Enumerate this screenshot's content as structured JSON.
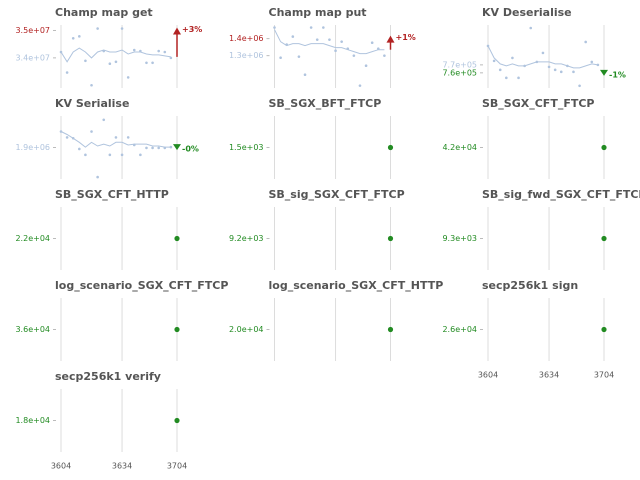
{
  "chart_data": [
    {
      "type": "line",
      "title": "Champ map get",
      "categories": [
        "3604",
        null,
        null,
        null,
        null,
        null,
        null,
        null,
        null,
        null,
        "3634",
        null,
        null,
        null,
        null,
        null,
        null,
        null,
        null,
        "3704"
      ],
      "values": [
        34214000,
        33464000,
        34714000,
        34786000,
        33893000,
        33000000,
        35071000,
        34250000,
        33786000,
        33857000,
        35071000,
        33286000,
        34286000,
        34250000,
        33821000,
        33821000,
        34250000,
        34214000,
        34000000,
        35000000
      ],
      "trend": [
        34214000,
        33857000,
        34214000,
        34357000,
        34214000,
        34000000,
        34214000,
        34286000,
        34214000,
        34214000,
        34286000,
        34143000,
        34214000,
        34214000,
        34143000,
        34107000,
        34107000,
        34071000,
        34036000,
        null
      ],
      "ylim": [
        32900000,
        35200000
      ],
      "yticks": [
        {
          "value": 35000000,
          "label": "3.5e+07"
        },
        {
          "value": 34000000,
          "label": "3.4e+07"
        }
      ],
      "ytick_colors": [
        "#b22222",
        "#b0c4de"
      ],
      "point_color": "#b0c4de",
      "trend_color": "#b0c4de",
      "marker": "arrow-up",
      "annotation": "+3%",
      "annotation_color": "#b22222"
    },
    {
      "type": "line",
      "title": "Champ map put",
      "categories": [
        "3604",
        null,
        null,
        null,
        null,
        null,
        null,
        null,
        null,
        null,
        "3634",
        null,
        null,
        null,
        null,
        null,
        null,
        null,
        null,
        "3704"
      ],
      "values": [
        1465000,
        1288000,
        1365000,
        1412000,
        1294000,
        1188000,
        1465000,
        1394000,
        1465000,
        1394000,
        1329000,
        1382000,
        1341000,
        1300000,
        1124000,
        1241000,
        1376000,
        1341000,
        1300000,
        1400000
      ],
      "trend": [
        1453000,
        1382000,
        1359000,
        1371000,
        1371000,
        1359000,
        1371000,
        1371000,
        1371000,
        1359000,
        1347000,
        1347000,
        1335000,
        1324000,
        1312000,
        1312000,
        1324000,
        1335000,
        1335000,
        null
      ],
      "ylim": [
        1110000,
        1480000
      ],
      "yticks": [
        {
          "value": 1400000,
          "label": "1.4e+06"
        },
        {
          "value": 1300000,
          "label": "1.3e+06"
        }
      ],
      "ytick_colors": [
        "#b22222",
        "#b0c4de"
      ],
      "point_color": "#b0c4de",
      "trend_color": "#b0c4de",
      "marker": "arrow-up",
      "annotation": "+1%",
      "annotation_color": "#b22222"
    },
    {
      "type": "line",
      "title": "KV Deserialise",
      "categories": [
        "3604",
        null,
        null,
        null,
        null,
        null,
        null,
        null,
        null,
        null,
        "3634",
        null,
        null,
        null,
        null,
        null,
        null,
        null,
        null,
        "3704"
      ],
      "values": [
        793750,
        775000,
        763750,
        753750,
        778750,
        753750,
        768750,
        816250,
        773750,
        785000,
        767500,
        763750,
        761250,
        768750,
        761250,
        743750,
        798750,
        773750,
        770000,
        760000
      ],
      "trend": [
        793750,
        778750,
        771250,
        768750,
        771250,
        768750,
        768750,
        771250,
        773750,
        773750,
        773750,
        771250,
        771250,
        768750,
        766250,
        766250,
        768750,
        771250,
        770000,
        null
      ],
      "ylim": [
        741000,
        820000
      ],
      "yticks": [
        {
          "value": 770000,
          "label": "7.7e+05"
        },
        {
          "value": 760000,
          "label": "7.6e+05"
        }
      ],
      "ytick_colors": [
        "#b0c4de",
        "#228b22"
      ],
      "point_color": "#b0c4de",
      "trend_color": "#b0c4de",
      "marker": "triangle-down",
      "annotation": "-1%",
      "annotation_color": "#228b22"
    },
    {
      "type": "line",
      "title": "KV Serialise",
      "categories": [
        "3604",
        null,
        null,
        null,
        null,
        null,
        null,
        null,
        null,
        null,
        "3634",
        null,
        null,
        null,
        null,
        null,
        null,
        null,
        null,
        "3704"
      ],
      "values": [
        1976000,
        1948000,
        1944000,
        1893000,
        1865000,
        1976000,
        1759000,
        2032000,
        1865000,
        1948000,
        1865000,
        1948000,
        1912000,
        1865000,
        1898000,
        1898000,
        1898000,
        1898000,
        1902000,
        1902000
      ],
      "trend": [
        1976000,
        1962000,
        1944000,
        1925000,
        1902000,
        1925000,
        1907000,
        1916000,
        1907000,
        1925000,
        1925000,
        1912000,
        1916000,
        1916000,
        1916000,
        1907000,
        1907000,
        1902000,
        1902000,
        null
      ],
      "ylim": [
        1750000,
        2050000
      ],
      "yticks": [
        {
          "value": 1900000,
          "label": "1.9e+06"
        }
      ],
      "ytick_colors": [
        "#b0c4de"
      ],
      "point_color": "#b0c4de",
      "trend_color": "#b0c4de",
      "marker": "triangle-down",
      "annotation": "-0%",
      "annotation_color": "#228b22"
    },
    {
      "type": "point",
      "title": "SB_SGX_BFT_FTCP",
      "categories": [
        "3604",
        null,
        null,
        null,
        null,
        null,
        null,
        null,
        null,
        null,
        "3634",
        null,
        null,
        null,
        null,
        null,
        null,
        null,
        null,
        "3704"
      ],
      "values": [
        null,
        null,
        null,
        null,
        null,
        null,
        null,
        null,
        null,
        null,
        null,
        null,
        null,
        null,
        null,
        null,
        null,
        null,
        null,
        1500
      ],
      "ylim": [
        1350,
        1650
      ],
      "yticks": [
        {
          "value": 1500,
          "label": "1.5e+03"
        }
      ],
      "ytick_colors": [
        "#228b22"
      ],
      "point_color": "#228b22"
    },
    {
      "type": "point",
      "title": "SB_SGX_CFT_FTCP",
      "categories": [
        "3604",
        null,
        null,
        null,
        null,
        null,
        null,
        null,
        null,
        null,
        "3634",
        null,
        null,
        null,
        null,
        null,
        null,
        null,
        null,
        "3704"
      ],
      "values": [
        null,
        null,
        null,
        null,
        null,
        null,
        null,
        null,
        null,
        null,
        null,
        null,
        null,
        null,
        null,
        null,
        null,
        null,
        null,
        42000
      ],
      "ylim": [
        37800,
        46200
      ],
      "yticks": [
        {
          "value": 42000,
          "label": "4.2e+04"
        }
      ],
      "ytick_colors": [
        "#228b22"
      ],
      "point_color": "#228b22"
    },
    {
      "type": "point",
      "title": "SB_SGX_CFT_HTTP",
      "categories": [
        "3604",
        null,
        null,
        null,
        null,
        null,
        null,
        null,
        null,
        null,
        "3634",
        null,
        null,
        null,
        null,
        null,
        null,
        null,
        null,
        "3704"
      ],
      "values": [
        null,
        null,
        null,
        null,
        null,
        null,
        null,
        null,
        null,
        null,
        null,
        null,
        null,
        null,
        null,
        null,
        null,
        null,
        null,
        22000
      ],
      "ylim": [
        19800,
        24200
      ],
      "yticks": [
        {
          "value": 22000,
          "label": "2.2e+04"
        }
      ],
      "ytick_colors": [
        "#228b22"
      ],
      "point_color": "#228b22"
    },
    {
      "type": "point",
      "title": "SB_sig_SGX_CFT_FTCP",
      "categories": [
        "3604",
        null,
        null,
        null,
        null,
        null,
        null,
        null,
        null,
        null,
        "3634",
        null,
        null,
        null,
        null,
        null,
        null,
        null,
        null,
        "3704"
      ],
      "values": [
        null,
        null,
        null,
        null,
        null,
        null,
        null,
        null,
        null,
        null,
        null,
        null,
        null,
        null,
        null,
        null,
        null,
        null,
        null,
        9200
      ],
      "ylim": [
        8280,
        10120
      ],
      "yticks": [
        {
          "value": 9200,
          "label": "9.2e+03"
        }
      ],
      "ytick_colors": [
        "#228b22"
      ],
      "point_color": "#228b22"
    },
    {
      "type": "point",
      "title": "SB_sig_fwd_SGX_CFT_FTCP",
      "categories": [
        "3604",
        null,
        null,
        null,
        null,
        null,
        null,
        null,
        null,
        null,
        "3634",
        null,
        null,
        null,
        null,
        null,
        null,
        null,
        null,
        "3704"
      ],
      "values": [
        null,
        null,
        null,
        null,
        null,
        null,
        null,
        null,
        null,
        null,
        null,
        null,
        null,
        null,
        null,
        null,
        null,
        null,
        null,
        9300
      ],
      "ylim": [
        8370,
        10230
      ],
      "yticks": [
        {
          "value": 9300,
          "label": "9.3e+03"
        }
      ],
      "ytick_colors": [
        "#228b22"
      ],
      "point_color": "#228b22"
    },
    {
      "type": "point",
      "title": "log_scenario_SGX_CFT_FTCP",
      "categories": [
        "3604",
        null,
        null,
        null,
        null,
        null,
        null,
        null,
        null,
        null,
        "3634",
        null,
        null,
        null,
        null,
        null,
        null,
        null,
        null,
        "3704"
      ],
      "values": [
        null,
        null,
        null,
        null,
        null,
        null,
        null,
        null,
        null,
        null,
        null,
        null,
        null,
        null,
        null,
        null,
        null,
        null,
        null,
        36000
      ],
      "ylim": [
        32400,
        39600
      ],
      "yticks": [
        {
          "value": 36000,
          "label": "3.6e+04"
        }
      ],
      "ytick_colors": [
        "#228b22"
      ],
      "point_color": "#228b22"
    },
    {
      "type": "point",
      "title": "log_scenario_SGX_CFT_HTTP",
      "categories": [
        "3604",
        null,
        null,
        null,
        null,
        null,
        null,
        null,
        null,
        null,
        "3634",
        null,
        null,
        null,
        null,
        null,
        null,
        null,
        null,
        "3704"
      ],
      "values": [
        null,
        null,
        null,
        null,
        null,
        null,
        null,
        null,
        null,
        null,
        null,
        null,
        null,
        null,
        null,
        null,
        null,
        null,
        null,
        20000
      ],
      "ylim": [
        18000,
        22000
      ],
      "yticks": [
        {
          "value": 20000,
          "label": "2.0e+04"
        }
      ],
      "ytick_colors": [
        "#228b22"
      ],
      "point_color": "#228b22"
    },
    {
      "type": "point",
      "title": "secp256k1 sign",
      "categories": [
        "3604",
        null,
        null,
        null,
        null,
        null,
        null,
        null,
        null,
        null,
        "3634",
        null,
        null,
        null,
        null,
        null,
        null,
        null,
        null,
        "3704"
      ],
      "values": [
        null,
        null,
        null,
        null,
        null,
        null,
        null,
        null,
        null,
        null,
        null,
        null,
        null,
        null,
        null,
        null,
        null,
        null,
        null,
        26000
      ],
      "ylim": [
        23400,
        28600
      ],
      "yticks": [
        {
          "value": 26000,
          "label": "2.6e+04"
        }
      ],
      "ytick_colors": [
        "#228b22"
      ],
      "point_color": "#228b22",
      "show_xticklabels": true
    },
    {
      "type": "point",
      "title": "secp256k1 verify",
      "categories": [
        "3604",
        null,
        null,
        null,
        null,
        null,
        null,
        null,
        null,
        null,
        "3634",
        null,
        null,
        null,
        null,
        null,
        null,
        null,
        null,
        "3704"
      ],
      "values": [
        null,
        null,
        null,
        null,
        null,
        null,
        null,
        null,
        null,
        null,
        null,
        null,
        null,
        null,
        null,
        null,
        null,
        null,
        null,
        18000
      ],
      "ylim": [
        16200,
        19800
      ],
      "yticks": [
        {
          "value": 18000,
          "label": "1.8e+04"
        }
      ],
      "ytick_colors": [
        "#228b22"
      ],
      "point_color": "#228b22",
      "show_xticklabels": true
    }
  ]
}
